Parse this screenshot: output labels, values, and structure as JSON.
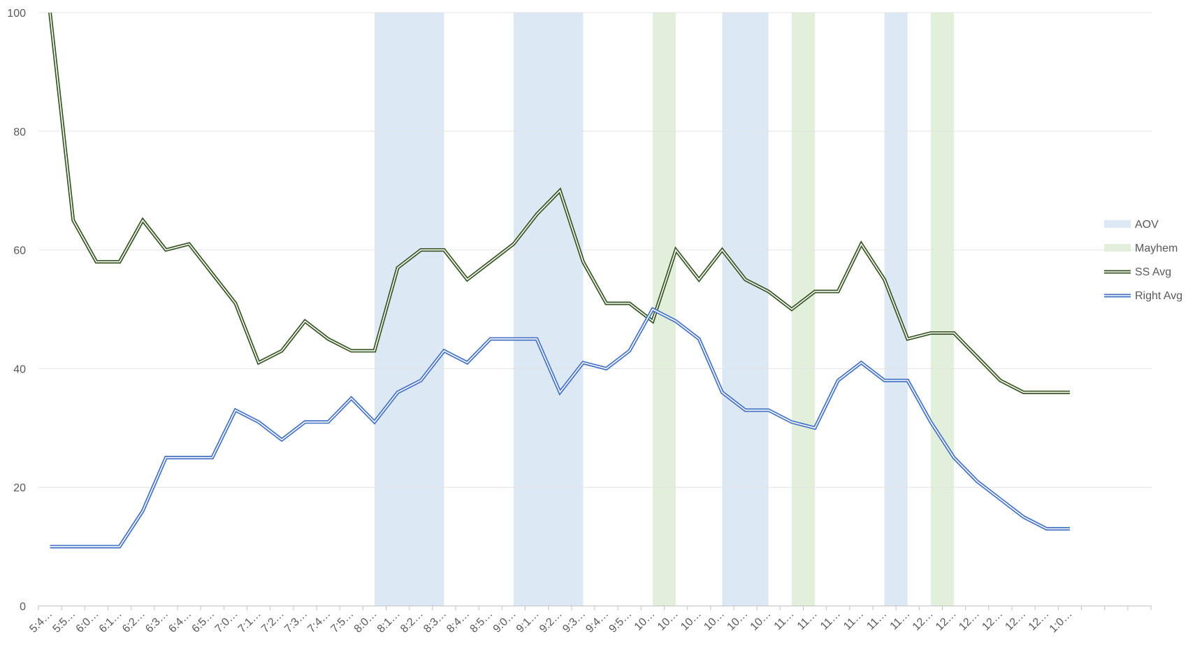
{
  "chart_data": {
    "type": "line",
    "title": "",
    "xlabel": "",
    "ylabel": "",
    "ylim": [
      0,
      100
    ],
    "yticks": [
      0,
      20,
      40,
      60,
      80,
      100
    ],
    "grid": "horizontal",
    "legend_position": "right",
    "categories": [
      "5:4…",
      "5:5…",
      "6:0…",
      "6:1…",
      "6:2…",
      "6:3…",
      "6:4…",
      "6:5…",
      "7:0…",
      "7:1…",
      "7:2…",
      "7:3…",
      "7:4…",
      "7:5…",
      "8:0…",
      "8:1…",
      "8:2…",
      "8:3…",
      "8:4…",
      "8:5…",
      "9:0…",
      "9:1…",
      "9:2…",
      "9:3…",
      "9:4…",
      "9:5…",
      "10…",
      "10…",
      "10…",
      "10…",
      "10…",
      "10…",
      "11…",
      "11…",
      "11…",
      "11…",
      "11…",
      "11…",
      "12…",
      "12…",
      "12…",
      "12…",
      "12…",
      "12…",
      "1:0…"
    ],
    "series": [
      {
        "name": "SS Avg",
        "color": "#375623",
        "style": "double-line",
        "values": [
          100,
          65,
          58,
          58,
          65,
          60,
          61,
          56,
          51,
          41,
          43,
          48,
          45,
          43,
          43,
          57,
          60,
          60,
          55,
          58,
          61,
          66,
          70,
          58,
          51,
          51,
          48,
          60,
          55,
          60,
          55,
          53,
          50,
          53,
          53,
          61,
          55,
          45,
          46,
          46,
          42,
          38,
          36,
          36,
          36
        ]
      },
      {
        "name": "Right Avg",
        "color": "#4472C4",
        "style": "double-line",
        "values": [
          10,
          10,
          10,
          10,
          16,
          25,
          25,
          25,
          33,
          31,
          28,
          31,
          31,
          35,
          31,
          36,
          38,
          43,
          41,
          45,
          45,
          45,
          36,
          41,
          40,
          43,
          50,
          48,
          45,
          36,
          33,
          33,
          31,
          30,
          38,
          41,
          38,
          38,
          31,
          25,
          21,
          18,
          15,
          13,
          13
        ]
      }
    ],
    "bands": [
      {
        "name": "AOV",
        "start_index": 14,
        "end_index": 17
      },
      {
        "name": "AOV",
        "start_index": 20,
        "end_index": 23
      },
      {
        "name": "Mayhem",
        "start_index": 26,
        "end_index": 27
      },
      {
        "name": "AOV",
        "start_index": 29,
        "end_index": 31
      },
      {
        "name": "Mayhem",
        "start_index": 32,
        "end_index": 33
      },
      {
        "name": "AOV",
        "start_index": 36,
        "end_index": 37
      },
      {
        "name": "Mayhem",
        "start_index": 38,
        "end_index": 39
      }
    ],
    "band_colors": {
      "AOV": "#DDE8F5",
      "Mayhem": "#E2EFDA"
    },
    "legend": [
      {
        "label": "AOV",
        "kind": "band",
        "color": "#DDE8F5"
      },
      {
        "label": "Mayhem",
        "kind": "band",
        "color": "#E2EFDA"
      },
      {
        "label": "SS Avg",
        "kind": "line",
        "color": "#375623"
      },
      {
        "label": "Right Avg",
        "kind": "line",
        "color": "#4472C4"
      }
    ]
  }
}
